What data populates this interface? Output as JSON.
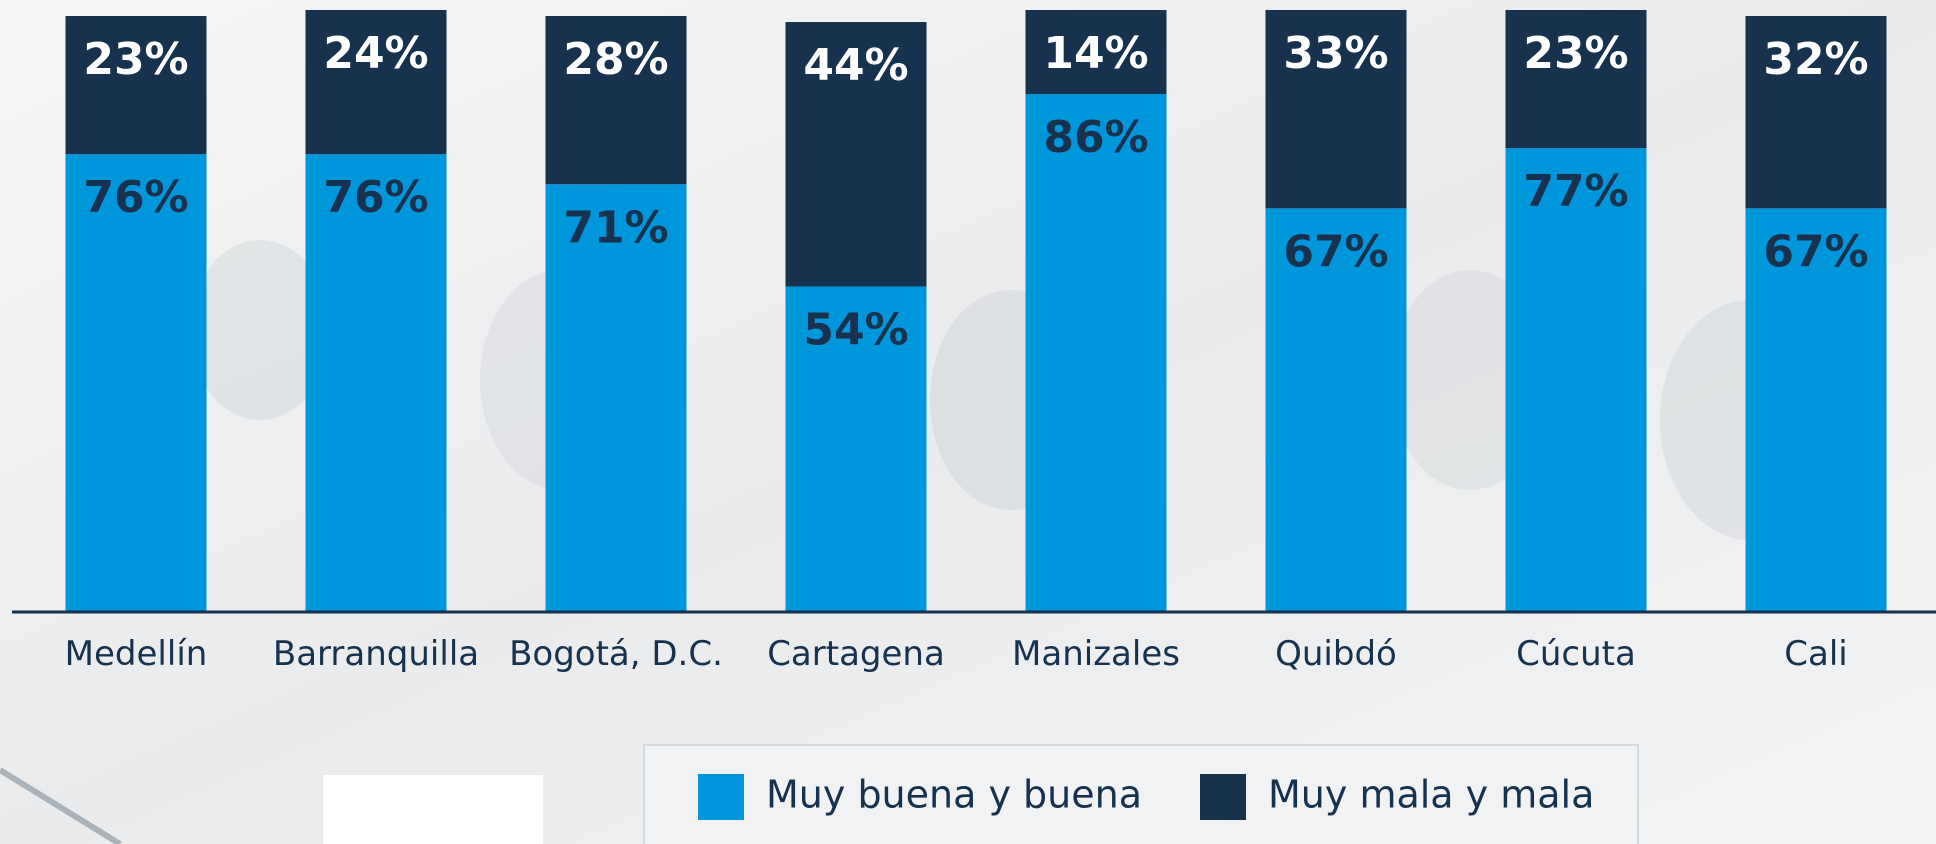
{
  "chart_data": {
    "type": "stacked-bar",
    "categories": [
      "Medellín",
      "Barranquilla",
      "Bogotá, D.C.",
      "Cartagena",
      "Manizales",
      "Quibdó",
      "Cúcuta",
      "Cali"
    ],
    "series": [
      {
        "name": "Muy buena y buena",
        "color": "#0096dc",
        "values": [
          76,
          76,
          71,
          54,
          86,
          67,
          77,
          67
        ],
        "value_labels": [
          "76%",
          "76%",
          "71%",
          "54%",
          "86%",
          "67%",
          "77%",
          "67%"
        ]
      },
      {
        "name": "Muy mala y mala",
        "color": "#16324f",
        "values": [
          23,
          24,
          28,
          44,
          14,
          33,
          23,
          32
        ],
        "value_labels": [
          "23%",
          "24%",
          "28%",
          "44%",
          "14%",
          "33%",
          "23%",
          "32%"
        ]
      }
    ],
    "ylim": [
      0,
      100
    ]
  }
}
